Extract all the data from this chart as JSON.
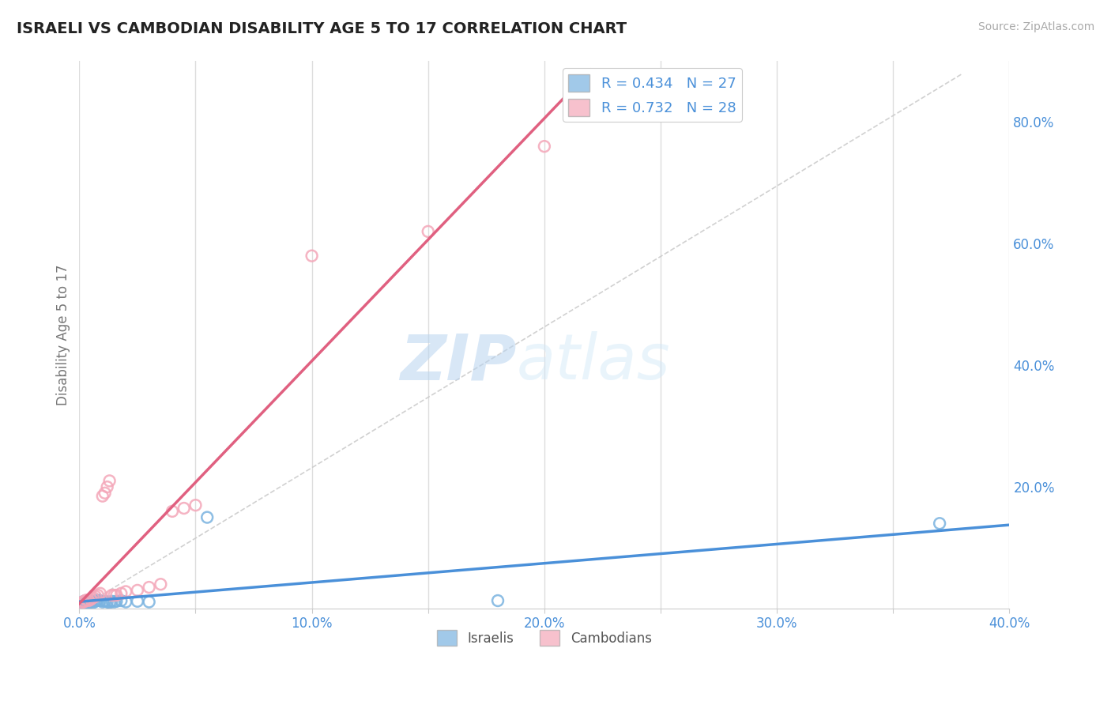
{
  "title": "ISRAELI VS CAMBODIAN DISABILITY AGE 5 TO 17 CORRELATION CHART",
  "source": "Source: ZipAtlas.com",
  "ylabel": "Disability Age 5 to 17",
  "xlim": [
    0.0,
    0.4
  ],
  "ylim": [
    0.0,
    0.9
  ],
  "xticks": [
    0.0,
    0.05,
    0.1,
    0.15,
    0.2,
    0.25,
    0.3,
    0.35,
    0.4
  ],
  "xticklabels": [
    "0.0%",
    "",
    "10.0%",
    "",
    "20.0%",
    "",
    "30.0%",
    "",
    "40.0%"
  ],
  "yticks_right": [
    0.0,
    0.2,
    0.4,
    0.6,
    0.8
  ],
  "yticklabels_right": [
    "",
    "20.0%",
    "40.0%",
    "60.0%",
    "80.0%"
  ],
  "grid_color": "#dddddd",
  "background_color": "#ffffff",
  "watermark_zip": "ZIP",
  "watermark_atlas": "atlas",
  "legend_R1": "R = 0.434",
  "legend_N1": "N = 27",
  "legend_R2": "R = 0.732",
  "legend_N2": "N = 28",
  "israelis_color": "#7ab3e0",
  "cambodians_color": "#f4a7b9",
  "regression_israel_color": "#4a90d9",
  "regression_cambodia_color": "#e06080",
  "title_color": "#222222",
  "tick_label_color": "#4a90d9",
  "axis_label_color": "#777777",
  "source_color": "#aaaaaa",
  "israelis_x": [
    0.001,
    0.002,
    0.002,
    0.003,
    0.003,
    0.004,
    0.004,
    0.005,
    0.005,
    0.006,
    0.007,
    0.008,
    0.009,
    0.01,
    0.011,
    0.012,
    0.013,
    0.014,
    0.015,
    0.016,
    0.018,
    0.02,
    0.025,
    0.03,
    0.055,
    0.18,
    0.37
  ],
  "israelis_y": [
    0.01,
    0.008,
    0.012,
    0.009,
    0.011,
    0.013,
    0.01,
    0.012,
    0.011,
    0.01,
    0.012,
    0.014,
    0.013,
    0.011,
    0.012,
    0.011,
    0.01,
    0.012,
    0.011,
    0.012,
    0.013,
    0.011,
    0.012,
    0.011,
    0.15,
    0.013,
    0.14
  ],
  "cambodians_x": [
    0.001,
    0.002,
    0.002,
    0.003,
    0.004,
    0.005,
    0.006,
    0.007,
    0.008,
    0.009,
    0.01,
    0.011,
    0.012,
    0.013,
    0.014,
    0.015,
    0.016,
    0.018,
    0.02,
    0.025,
    0.03,
    0.035,
    0.04,
    0.045,
    0.05,
    0.1,
    0.15,
    0.2
  ],
  "cambodians_y": [
    0.01,
    0.012,
    0.011,
    0.014,
    0.013,
    0.015,
    0.018,
    0.02,
    0.022,
    0.025,
    0.185,
    0.19,
    0.2,
    0.21,
    0.022,
    0.022,
    0.022,
    0.025,
    0.028,
    0.03,
    0.035,
    0.04,
    0.16,
    0.165,
    0.17,
    0.58,
    0.62,
    0.76
  ]
}
